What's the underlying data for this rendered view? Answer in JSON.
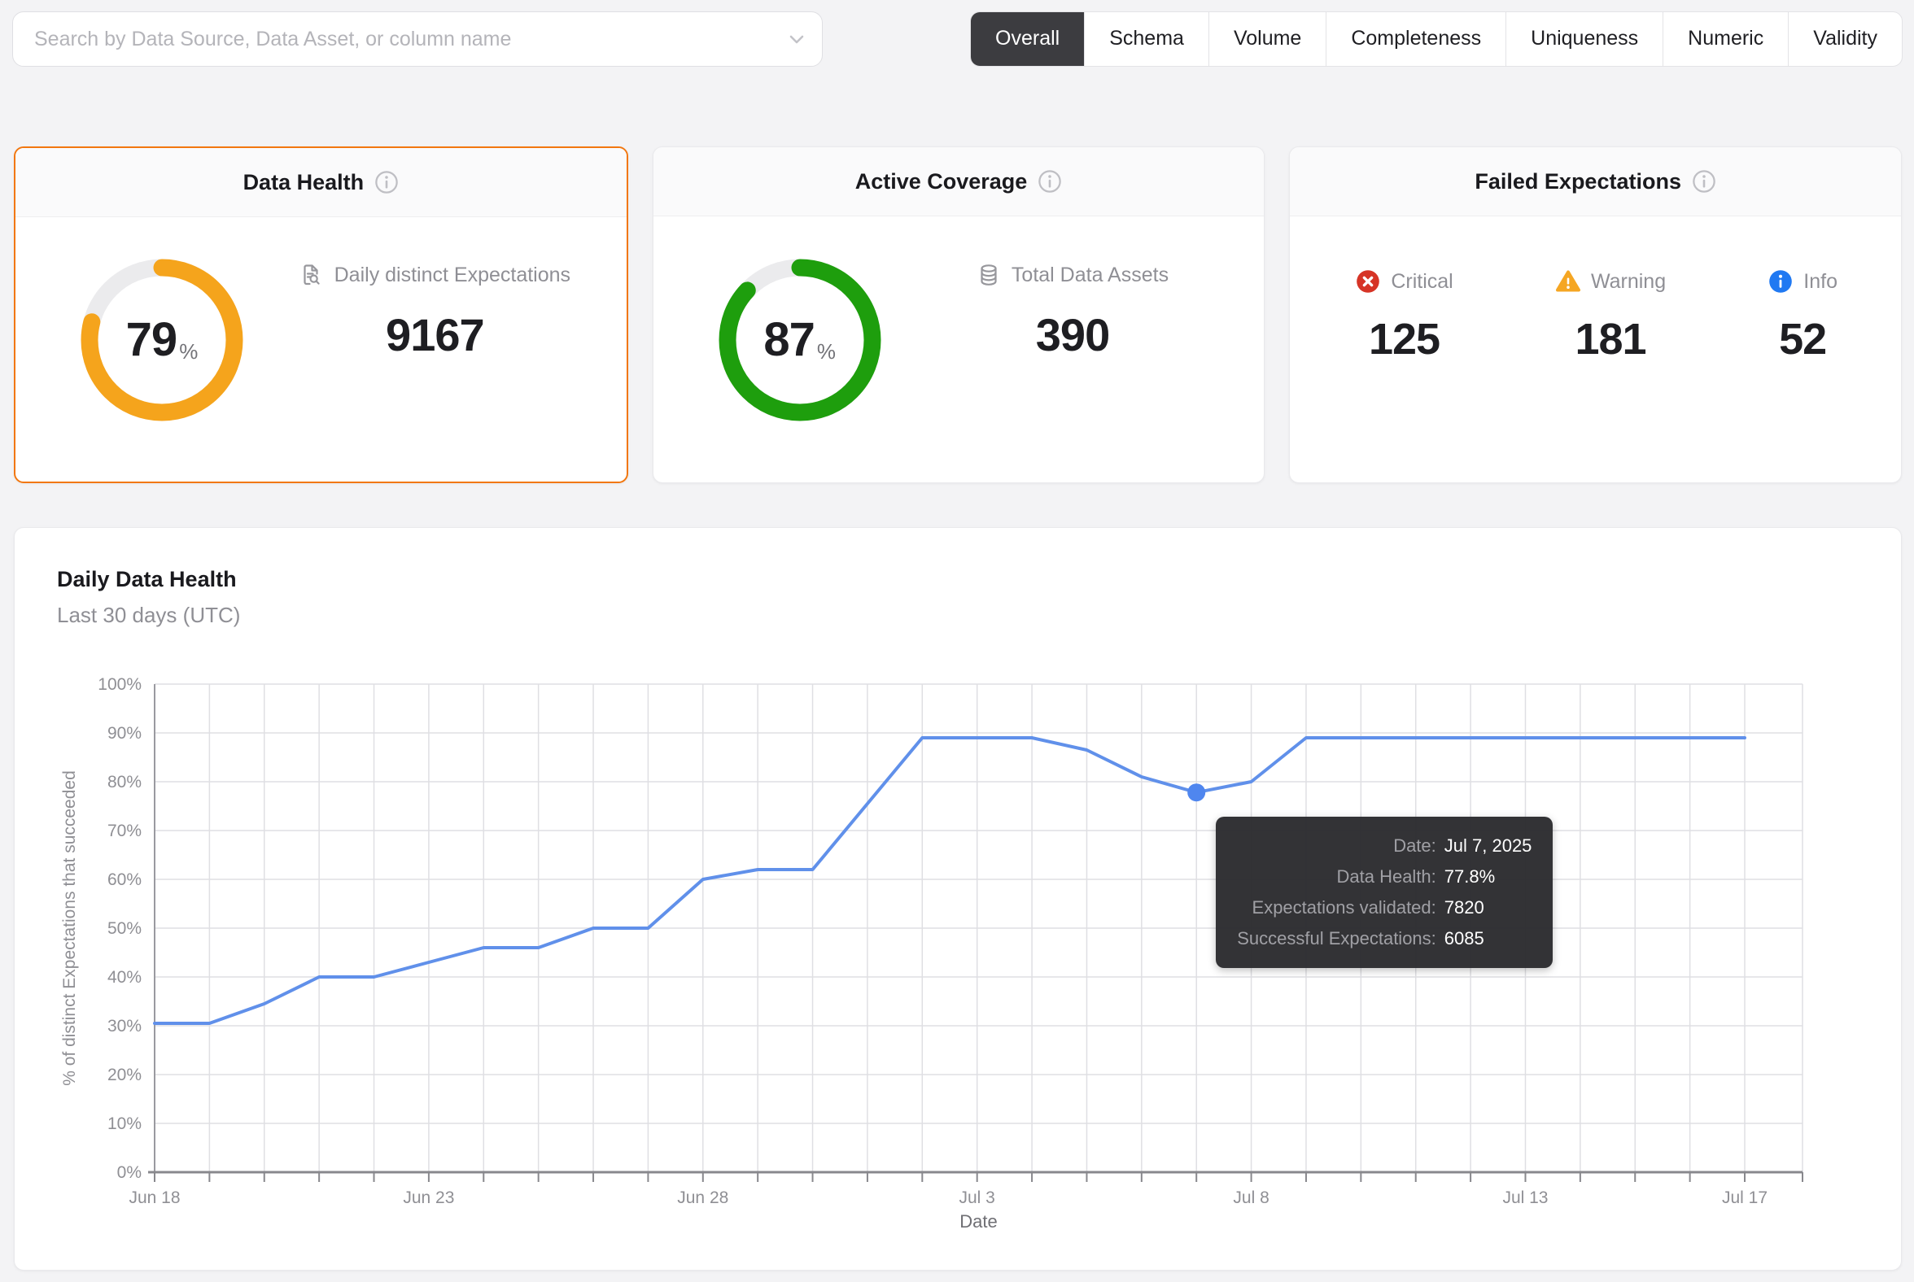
{
  "page": {
    "background": "#f3f3f5"
  },
  "search": {
    "placeholder": "Search by Data Source, Data Asset, or column name"
  },
  "tabs": {
    "items": [
      {
        "label": "Overall",
        "active": true
      },
      {
        "label": "Schema",
        "active": false
      },
      {
        "label": "Volume",
        "active": false
      },
      {
        "label": "Completeness",
        "active": false
      },
      {
        "label": "Uniqueness",
        "active": false
      },
      {
        "label": "Numeric",
        "active": false
      },
      {
        "label": "Validity",
        "active": false
      }
    ],
    "active_bg": "#3c3c40"
  },
  "cards": {
    "data_health": {
      "title": "Data Health",
      "percent": "79",
      "percent_suffix": "%",
      "ring_color": "#f5a41c",
      "track_color": "#ebebed",
      "selected": true,
      "selected_border_color": "#f2770f",
      "metric_label": "Daily distinct Expectations",
      "metric_value": "9167"
    },
    "active_coverage": {
      "title": "Active Coverage",
      "percent": "87",
      "percent_suffix": "%",
      "ring_color": "#1e9e0d",
      "track_color": "#ebebed",
      "selected": false,
      "metric_label": "Total Data Assets",
      "metric_value": "390"
    },
    "failed_expectations": {
      "title": "Failed Expectations",
      "stats": [
        {
          "label": "Critical",
          "value": "125",
          "color": "#d63426"
        },
        {
          "label": "Warning",
          "value": "181",
          "color": "#f5a623"
        },
        {
          "label": "Info",
          "value": "52",
          "color": "#2079f2"
        }
      ]
    }
  },
  "chart_data": {
    "type": "line",
    "title": "Daily Data Health",
    "subtitle": "Last 30 days (UTC)",
    "xlabel": "Date",
    "ylabel": "% of distinct Expectations that succeeded",
    "ylim": [
      0,
      100
    ],
    "grid": true,
    "legend_position": "none",
    "line_color": "#6090ea",
    "x": [
      "Jun 18",
      "Jun 19",
      "Jun 20",
      "Jun 21",
      "Jun 22",
      "Jun 23",
      "Jun 24",
      "Jun 25",
      "Jun 26",
      "Jun 27",
      "Jun 28",
      "Jun 29",
      "Jun 30",
      "Jul 1",
      "Jul 2",
      "Jul 3",
      "Jul 4",
      "Jul 5",
      "Jul 6",
      "Jul 7",
      "Jul 8",
      "Jul 9",
      "Jul 10",
      "Jul 11",
      "Jul 12",
      "Jul 13",
      "Jul 14",
      "Jul 15",
      "Jul 16",
      "Jul 17"
    ],
    "values": [
      30.5,
      30.5,
      34.5,
      40,
      40,
      43,
      46,
      46,
      50,
      50,
      60,
      62,
      62,
      75.5,
      89,
      89,
      89,
      86.5,
      81,
      77.8,
      80,
      89,
      89,
      89,
      89,
      89,
      89,
      89,
      89,
      89
    ],
    "x_tick_indices": [
      0,
      5,
      10,
      15,
      20,
      25,
      29
    ],
    "y_ticks": [
      "0%",
      "10%",
      "20%",
      "30%",
      "40%",
      "50%",
      "60%",
      "70%",
      "80%",
      "90%",
      "100%"
    ],
    "marker": {
      "index": 19,
      "color": "#4f86ef"
    },
    "tooltip": {
      "rows": [
        {
          "label": "Date:",
          "value": "Jul 7, 2025"
        },
        {
          "label": "Data Health:",
          "value": "77.8%"
        },
        {
          "label": "Expectations validated:",
          "value": "7820"
        },
        {
          "label": "Successful Expectations:",
          "value": "6085"
        }
      ]
    }
  }
}
